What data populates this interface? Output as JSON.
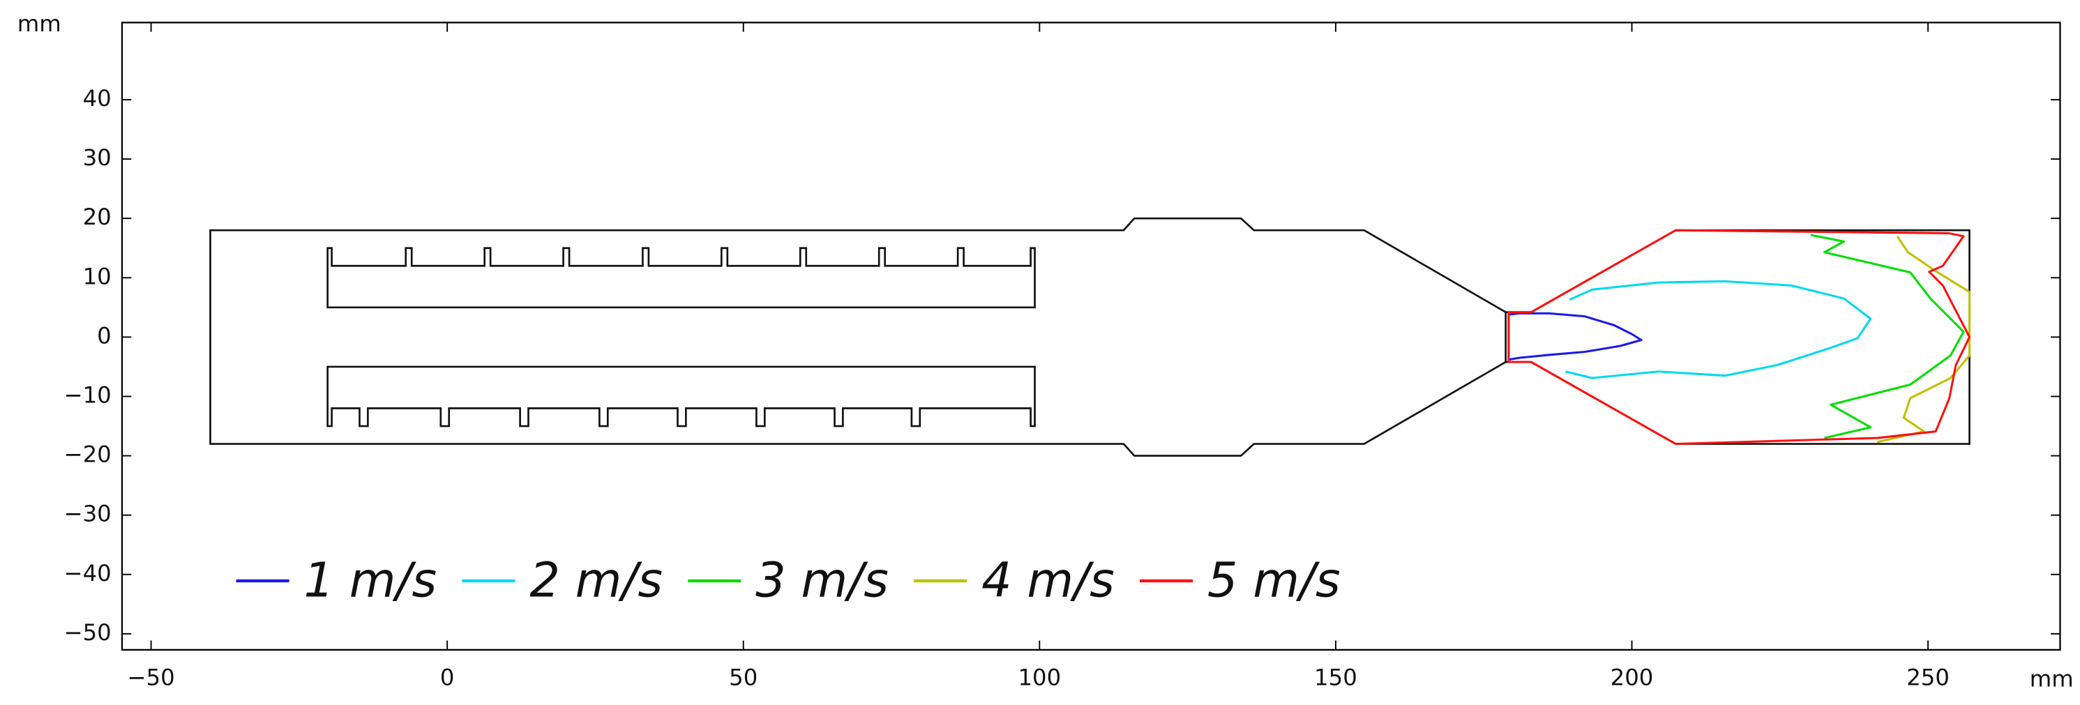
{
  "chart_data": {
    "type": "contour",
    "xlabel": "mm",
    "ylabel": "mm",
    "xlim": [
      -54.9,
      272.3
    ],
    "ylim": [
      -52.7,
      53
    ],
    "xticks": [
      {
        "value": -50,
        "label": "−50"
      },
      0,
      50,
      100,
      150,
      200,
      250
    ],
    "yticks": [
      {
        "value": -50,
        "label": "−50"
      },
      {
        "value": -40,
        "label": "−40"
      },
      {
        "value": -30,
        "label": "−30"
      },
      {
        "value": -20,
        "label": "−20"
      },
      {
        "value": -10,
        "label": "−10"
      },
      0,
      10,
      20,
      30,
      40
    ],
    "series": [
      {
        "name": "1 m/s",
        "color": "#1a1ae6",
        "x": [
          181,
          186,
          192,
          197,
          200,
          201.6,
          198,
          192,
          186,
          181,
          179.2,
          179.2,
          181
        ],
        "y": [
          4,
          4,
          3.5,
          2,
          0.5,
          -0.5,
          -1.5,
          -2.5,
          -3,
          -3.5,
          -3.8,
          3.8,
          4
        ]
      },
      {
        "name": "2 m/s",
        "color": "#00d8f0",
        "x": [
          189.5,
          193.3,
          204.5,
          215.7,
          226.9,
          235.8,
          240.3,
          238.1,
          233.6,
          224.6,
          215.7,
          204.5,
          193.3,
          188.8
        ],
        "y": [
          6.3,
          8,
          9.2,
          9.4,
          8.7,
          6.5,
          3.1,
          -0.2,
          -1.8,
          -4.7,
          -6.5,
          -5.8,
          -6.9,
          -5.8
        ]
      },
      {
        "name": "3 m/s",
        "color": "#00dd00",
        "x": [
          230.2,
          235.8,
          232.5,
          247,
          250.4,
          256,
          253.8,
          247,
          233.6,
          240.3,
          232.5
        ],
        "y": [
          17.2,
          16.1,
          14.3,
          10.9,
          6.5,
          0.9,
          -3.1,
          -8,
          -11.4,
          -15.2,
          -17
        ]
      },
      {
        "name": "4 m/s",
        "color": "#c0c000",
        "x": [
          244.8,
          246.6,
          251.5,
          257,
          257,
          253.8,
          247,
          245.9,
          249.3,
          241.4
        ],
        "y": [
          17,
          14.3,
          11,
          7.6,
          -3.1,
          -6.9,
          -10.3,
          -13.6,
          -15.9,
          -17.7
        ]
      },
      {
        "name": "5 m/s",
        "color": "#ff1010",
        "x": [
          253.5,
          256,
          252.5,
          250.2,
          252.5,
          257,
          254.7,
          253.6,
          251.3,
          241.5,
          207.4,
          183,
          179.2,
          179.2,
          183,
          207.4,
          253.5
        ],
        "y": [
          17.5,
          17,
          12,
          11,
          8.7,
          0,
          -4.7,
          -10.3,
          -15.9,
          -17,
          -18,
          -4.2,
          -4.2,
          4.2,
          4.2,
          18,
          17.5
        ]
      }
    ]
  }
}
